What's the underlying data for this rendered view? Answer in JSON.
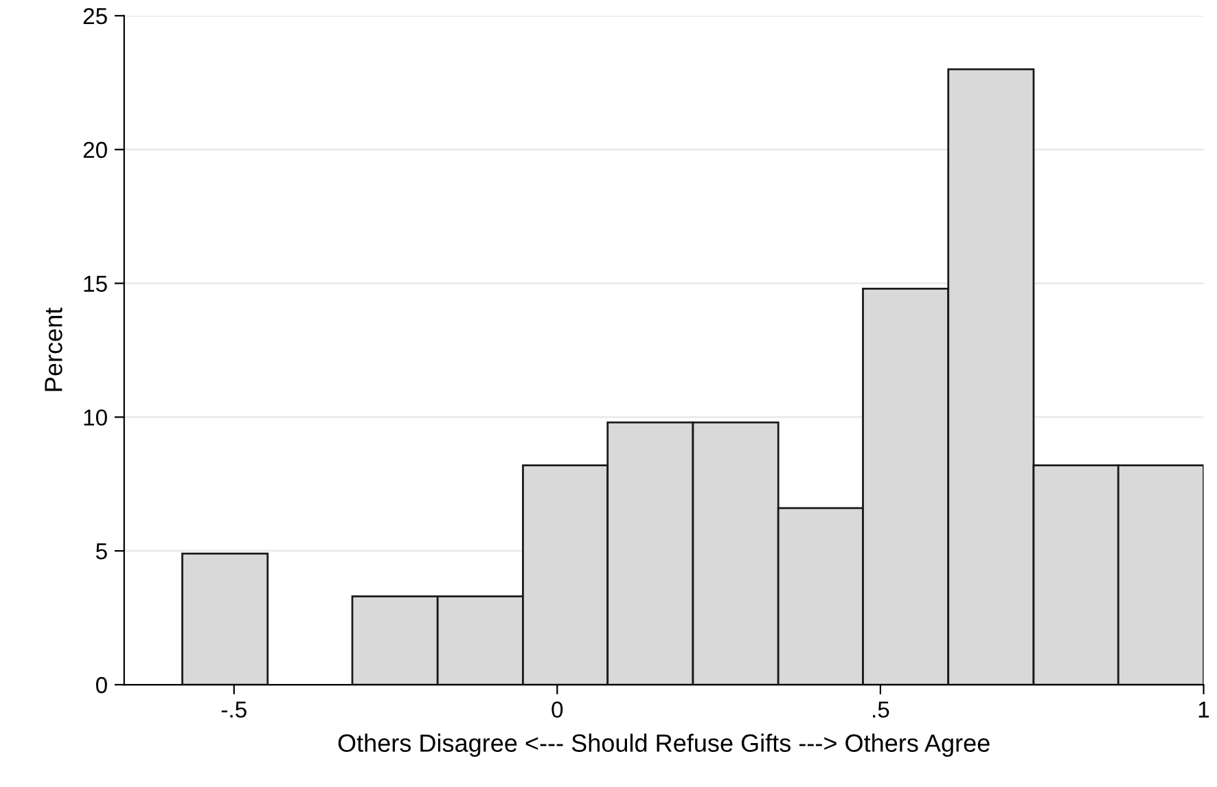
{
  "chart_data": {
    "type": "histogram",
    "xlabel": "Others Disagree <--- Should Refuse Gifts ---> Others Agree",
    "ylabel": "Percent",
    "bins": [
      -0.58,
      -0.448,
      -0.317,
      -0.185,
      -0.053,
      0.078,
      0.21,
      0.342,
      0.473,
      0.605,
      0.737,
      0.868,
      1.0
    ],
    "values": [
      4.9,
      0,
      3.3,
      3.3,
      8.2,
      9.8,
      9.8,
      6.6,
      14.8,
      23,
      8.2,
      8.2
    ],
    "color": "#d9d9d9",
    "xlim": [
      -0.67,
      1.0
    ],
    "xticks": [
      {
        "value": -0.5,
        "label": "-.5"
      },
      0,
      {
        "value": 0.5,
        "label": ".5"
      },
      1
    ],
    "ylim": [
      0,
      25
    ],
    "yticks": [
      0,
      5,
      10,
      15,
      20,
      25
    ],
    "grid": "y"
  }
}
